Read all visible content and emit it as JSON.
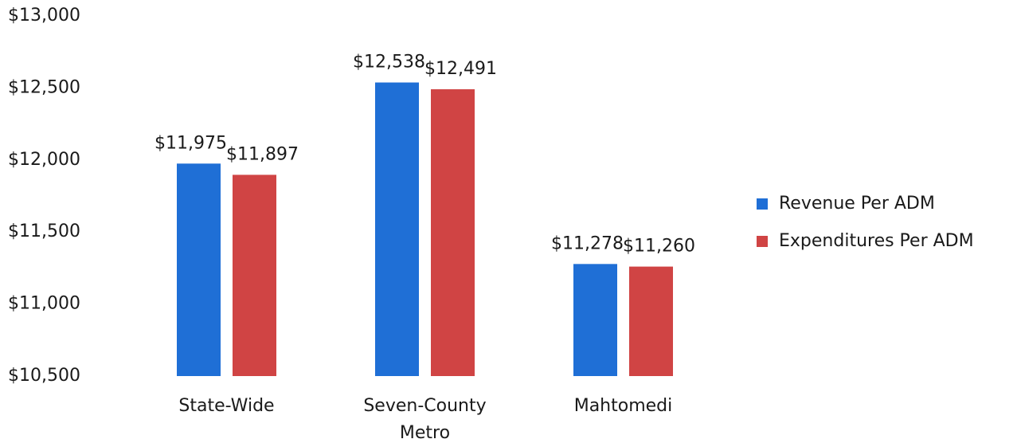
{
  "chart_data": {
    "type": "bar",
    "categories": [
      "State-Wide",
      "Seven-County Metro",
      "Mahtomedi"
    ],
    "series": [
      {
        "name": "Revenue Per ADM",
        "color": "#1f6fd6",
        "values": [
          11975,
          12538,
          11278
        ],
        "value_labels": [
          "$11,975",
          "$12,538",
          "$11,278"
        ]
      },
      {
        "name": "Expenditures Per ADM",
        "color": "#d04444",
        "values": [
          11897,
          12491,
          11260
        ],
        "value_labels": [
          "$11,897",
          "$12,491",
          "$11,260"
        ]
      }
    ],
    "ylim": [
      10500,
      13000
    ],
    "yticks": [
      {
        "value": 10500,
        "label": "$10,500"
      },
      {
        "value": 11000,
        "label": "$11,000"
      },
      {
        "value": 11500,
        "label": "$11,500"
      },
      {
        "value": 12000,
        "label": "$12,000"
      },
      {
        "value": 12500,
        "label": "$12,500"
      },
      {
        "value": 13000,
        "label": "$13,000"
      }
    ],
    "grid": false,
    "legend": "right"
  }
}
